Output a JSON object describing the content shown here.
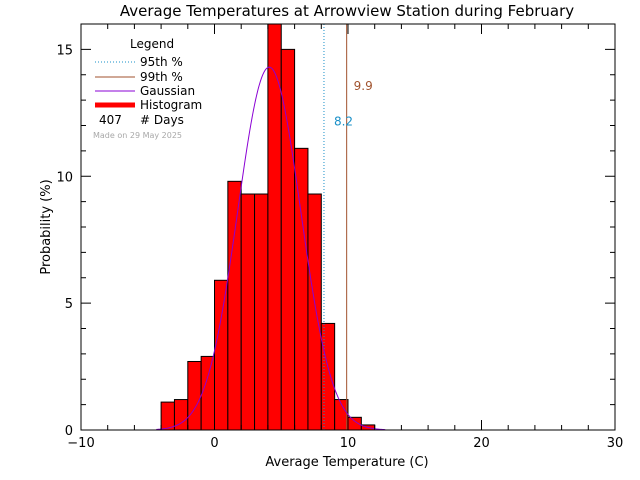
{
  "chart_data": {
    "type": "bar",
    "title": "Average Temperatures at Arrowview Station during February",
    "xlabel": "Average Temperature (C)",
    "ylabel": "Probability (%)",
    "xlim": [
      -10,
      30
    ],
    "ylim": [
      0,
      16
    ],
    "x_ticks": [
      -10,
      0,
      10,
      20,
      30
    ],
    "y_ticks": [
      0,
      5,
      10,
      15
    ],
    "bin_width": 1,
    "bins_left": [
      -4,
      -3,
      -2,
      -1,
      0,
      1,
      2,
      3,
      4,
      5,
      6,
      7,
      8,
      9,
      10,
      11
    ],
    "values": [
      1.1,
      1.2,
      2.7,
      2.9,
      5.9,
      9.8,
      9.3,
      9.3,
      16.0,
      15.0,
      11.1,
      9.3,
      4.2,
      1.2,
      0.5,
      0.2
    ],
    "gaussian": {
      "mean": 4.1,
      "sd": 2.35,
      "peak": 14.3
    },
    "percentile_95": {
      "label": "8.2",
      "value": 8.2
    },
    "percentile_99": {
      "label": "9.9",
      "value": 9.9
    },
    "colors": {
      "histogram": "#ff0000",
      "gaussian": "#8a00d4",
      "p95": "#1a90c8",
      "p99": "#a0522d"
    },
    "legend": {
      "title": "Legend",
      "entries": [
        "95th %",
        "99th %",
        "Gaussian",
        "Histogram"
      ],
      "days_value": "407",
      "days_label": "# Days",
      "made_on": "Made on 29 May 2025"
    }
  }
}
